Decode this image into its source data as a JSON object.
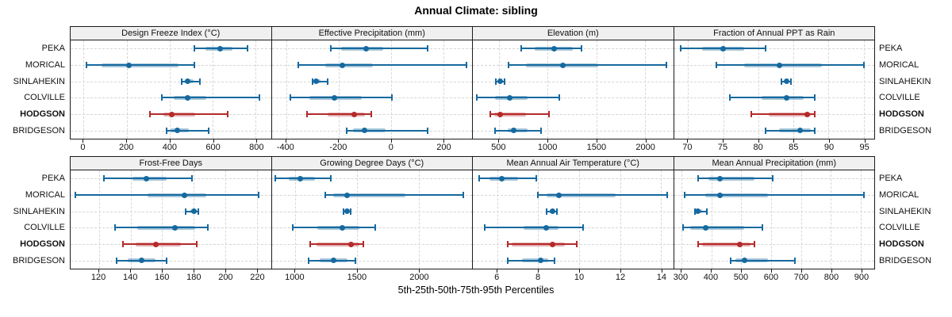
{
  "chart_data": {
    "type": "interval-dotplot-trellis",
    "title": "Annual Climate: sibling",
    "xlabel": "5th-25th-50th-75th-95th Percentiles",
    "percentile_labels": [
      "5th",
      "25th",
      "50th",
      "75th",
      "95th"
    ],
    "sites": [
      "PEKA",
      "MORICAL",
      "SINLAHEKIN",
      "COLVILLE",
      "HODGSON",
      "BRIDGESON"
    ],
    "highlight_site": "HODGSON",
    "colors": {
      "normal": "#16699f",
      "normal_band": "rgba(22,105,159,0.38)",
      "highlight": "#b52a2a",
      "highlight_band": "rgba(181,42,42,0.38)",
      "header_bg": "#f0f0f0",
      "grid": "#d6d6d6"
    },
    "layout": {
      "rows": 2,
      "cols": 4,
      "grid": "dashed",
      "legend": "none"
    },
    "panels": [
      {
        "title": "Design Freeze Index (°C)",
        "ticks": [
          0,
          200,
          400,
          600,
          800
        ],
        "domain": [
          -60,
          870
        ],
        "values": [
          [
            515,
            565,
            635,
            690,
            760
          ],
          [
            15,
            85,
            210,
            440,
            515
          ],
          [
            455,
            470,
            485,
            510,
            540
          ],
          [
            365,
            420,
            485,
            570,
            815
          ],
          [
            310,
            370,
            410,
            520,
            670
          ],
          [
            385,
            405,
            435,
            490,
            580
          ]
        ]
      },
      {
        "title": "Effective Precipitation (mm)",
        "ticks": [
          -400,
          -200,
          0,
          200
        ],
        "domain": [
          -455,
          310
        ],
        "values": [
          [
            -230,
            -190,
            -95,
            -30,
            140
          ],
          [
            -355,
            -250,
            -185,
            -70,
            290
          ],
          [
            -300,
            -295,
            -285,
            -270,
            -240
          ],
          [
            -385,
            -310,
            -215,
            -110,
            5
          ],
          [
            -320,
            -240,
            -140,
            -100,
            -75
          ],
          [
            -170,
            -145,
            -100,
            -20,
            140
          ]
        ]
      },
      {
        "title": "Elevation (m)",
        "ticks": [
          500,
          1000,
          1500,
          2000
        ],
        "domain": [
          230,
          2290
        ],
        "values": [
          [
            730,
            870,
            1070,
            1260,
            1350
          ],
          [
            600,
            780,
            1160,
            1520,
            2220
          ],
          [
            470,
            490,
            510,
            535,
            560
          ],
          [
            270,
            460,
            610,
            790,
            1120
          ],
          [
            410,
            450,
            510,
            780,
            1010
          ],
          [
            460,
            590,
            650,
            790,
            930
          ]
        ]
      },
      {
        "title": "Fraction of Annual PPT as Rain",
        "ticks": [
          70,
          75,
          80,
          85,
          90,
          95
        ],
        "domain": [
          68,
          96.5
        ],
        "values": [
          [
            69,
            72,
            75,
            78,
            81
          ],
          [
            74,
            78,
            83,
            89,
            95
          ],
          [
            83.3,
            83.7,
            84,
            84.3,
            84.7
          ],
          [
            76,
            80.5,
            84,
            86.5,
            88
          ],
          [
            79,
            81.5,
            87,
            87.5,
            88
          ],
          [
            81,
            83,
            86,
            87.5,
            88
          ]
        ]
      },
      {
        "title": "Frost-Free Days",
        "ticks": [
          120,
          140,
          160,
          180,
          200,
          220
        ],
        "domain": [
          102,
          229
        ],
        "values": [
          [
            123,
            141,
            150,
            163,
            179
          ],
          [
            105,
            151,
            174,
            188,
            221
          ],
          [
            175,
            178,
            180,
            182,
            183
          ],
          [
            130,
            144,
            168,
            181,
            189
          ],
          [
            135,
            143,
            156,
            172,
            182
          ],
          [
            131,
            138,
            147,
            156,
            163
          ]
        ]
      },
      {
        "title": "Growing Degree Days (°C)",
        "ticks": [
          1000,
          1500,
          2000
        ],
        "domain": [
          810,
          2430
        ],
        "values": [
          [
            840,
            950,
            1040,
            1160,
            1290
          ],
          [
            1240,
            1310,
            1420,
            1890,
            2360
          ],
          [
            1390,
            1405,
            1420,
            1435,
            1450
          ],
          [
            980,
            1180,
            1380,
            1520,
            1650
          ],
          [
            1120,
            1170,
            1450,
            1520,
            1550
          ],
          [
            1110,
            1200,
            1310,
            1420,
            1490
          ]
        ]
      },
      {
        "title": "Mean Annual Air Temperature (°C)",
        "ticks": [
          6,
          8,
          10,
          12,
          14
        ],
        "domain": [
          4.8,
          14.6
        ],
        "values": [
          [
            5.1,
            5.6,
            6.2,
            7.0,
            7.9
          ],
          [
            8.0,
            8.4,
            9.0,
            11.8,
            14.3
          ],
          [
            8.4,
            8.55,
            8.7,
            8.85,
            8.9
          ],
          [
            5.4,
            7.3,
            8.4,
            9.0,
            10.2
          ],
          [
            6.5,
            6.7,
            8.7,
            9.3,
            9.9
          ],
          [
            6.5,
            7.2,
            8.1,
            8.5,
            8.8
          ]
        ]
      },
      {
        "title": "Mean Annual Precipitation (mm)",
        "ticks": [
          300,
          400,
          500,
          600,
          700,
          800,
          900
        ],
        "domain": [
          275,
          945
        ],
        "values": [
          [
            355,
            390,
            430,
            545,
            605
          ],
          [
            310,
            380,
            430,
            590,
            910
          ],
          [
            345,
            350,
            355,
            370,
            385
          ],
          [
            305,
            330,
            380,
            510,
            570
          ],
          [
            355,
            370,
            495,
            530,
            545
          ],
          [
            465,
            480,
            510,
            590,
            680
          ]
        ]
      }
    ]
  }
}
